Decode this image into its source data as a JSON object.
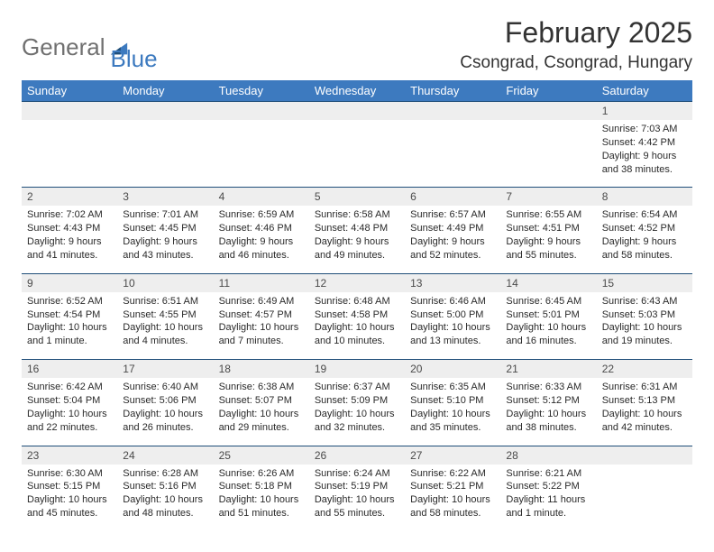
{
  "logo": {
    "text1": "General",
    "text2": "Blue"
  },
  "header": {
    "title": "February 2025",
    "location": "Csongrad, Csongrad, Hungary"
  },
  "colors": {
    "header_bg": "#3d7abf",
    "daynum_bg": "#eeeeee",
    "border": "#1f4e79",
    "text": "#2a2a2a"
  },
  "weekdays": [
    "Sunday",
    "Monday",
    "Tuesday",
    "Wednesday",
    "Thursday",
    "Friday",
    "Saturday"
  ],
  "weeks": [
    [
      null,
      null,
      null,
      null,
      null,
      null,
      {
        "n": "1",
        "sr": "7:03 AM",
        "ss": "4:42 PM",
        "dl": "9 hours and 38 minutes."
      }
    ],
    [
      {
        "n": "2",
        "sr": "7:02 AM",
        "ss": "4:43 PM",
        "dl": "9 hours and 41 minutes."
      },
      {
        "n": "3",
        "sr": "7:01 AM",
        "ss": "4:45 PM",
        "dl": "9 hours and 43 minutes."
      },
      {
        "n": "4",
        "sr": "6:59 AM",
        "ss": "4:46 PM",
        "dl": "9 hours and 46 minutes."
      },
      {
        "n": "5",
        "sr": "6:58 AM",
        "ss": "4:48 PM",
        "dl": "9 hours and 49 minutes."
      },
      {
        "n": "6",
        "sr": "6:57 AM",
        "ss": "4:49 PM",
        "dl": "9 hours and 52 minutes."
      },
      {
        "n": "7",
        "sr": "6:55 AM",
        "ss": "4:51 PM",
        "dl": "9 hours and 55 minutes."
      },
      {
        "n": "8",
        "sr": "6:54 AM",
        "ss": "4:52 PM",
        "dl": "9 hours and 58 minutes."
      }
    ],
    [
      {
        "n": "9",
        "sr": "6:52 AM",
        "ss": "4:54 PM",
        "dl": "10 hours and 1 minute."
      },
      {
        "n": "10",
        "sr": "6:51 AM",
        "ss": "4:55 PM",
        "dl": "10 hours and 4 minutes."
      },
      {
        "n": "11",
        "sr": "6:49 AM",
        "ss": "4:57 PM",
        "dl": "10 hours and 7 minutes."
      },
      {
        "n": "12",
        "sr": "6:48 AM",
        "ss": "4:58 PM",
        "dl": "10 hours and 10 minutes."
      },
      {
        "n": "13",
        "sr": "6:46 AM",
        "ss": "5:00 PM",
        "dl": "10 hours and 13 minutes."
      },
      {
        "n": "14",
        "sr": "6:45 AM",
        "ss": "5:01 PM",
        "dl": "10 hours and 16 minutes."
      },
      {
        "n": "15",
        "sr": "6:43 AM",
        "ss": "5:03 PM",
        "dl": "10 hours and 19 minutes."
      }
    ],
    [
      {
        "n": "16",
        "sr": "6:42 AM",
        "ss": "5:04 PM",
        "dl": "10 hours and 22 minutes."
      },
      {
        "n": "17",
        "sr": "6:40 AM",
        "ss": "5:06 PM",
        "dl": "10 hours and 26 minutes."
      },
      {
        "n": "18",
        "sr": "6:38 AM",
        "ss": "5:07 PM",
        "dl": "10 hours and 29 minutes."
      },
      {
        "n": "19",
        "sr": "6:37 AM",
        "ss": "5:09 PM",
        "dl": "10 hours and 32 minutes."
      },
      {
        "n": "20",
        "sr": "6:35 AM",
        "ss": "5:10 PM",
        "dl": "10 hours and 35 minutes."
      },
      {
        "n": "21",
        "sr": "6:33 AM",
        "ss": "5:12 PM",
        "dl": "10 hours and 38 minutes."
      },
      {
        "n": "22",
        "sr": "6:31 AM",
        "ss": "5:13 PM",
        "dl": "10 hours and 42 minutes."
      }
    ],
    [
      {
        "n": "23",
        "sr": "6:30 AM",
        "ss": "5:15 PM",
        "dl": "10 hours and 45 minutes."
      },
      {
        "n": "24",
        "sr": "6:28 AM",
        "ss": "5:16 PM",
        "dl": "10 hours and 48 minutes."
      },
      {
        "n": "25",
        "sr": "6:26 AM",
        "ss": "5:18 PM",
        "dl": "10 hours and 51 minutes."
      },
      {
        "n": "26",
        "sr": "6:24 AM",
        "ss": "5:19 PM",
        "dl": "10 hours and 55 minutes."
      },
      {
        "n": "27",
        "sr": "6:22 AM",
        "ss": "5:21 PM",
        "dl": "10 hours and 58 minutes."
      },
      {
        "n": "28",
        "sr": "6:21 AM",
        "ss": "5:22 PM",
        "dl": "11 hours and 1 minute."
      },
      null
    ]
  ],
  "labels": {
    "sunrise": "Sunrise:",
    "sunset": "Sunset:",
    "daylight": "Daylight:"
  }
}
